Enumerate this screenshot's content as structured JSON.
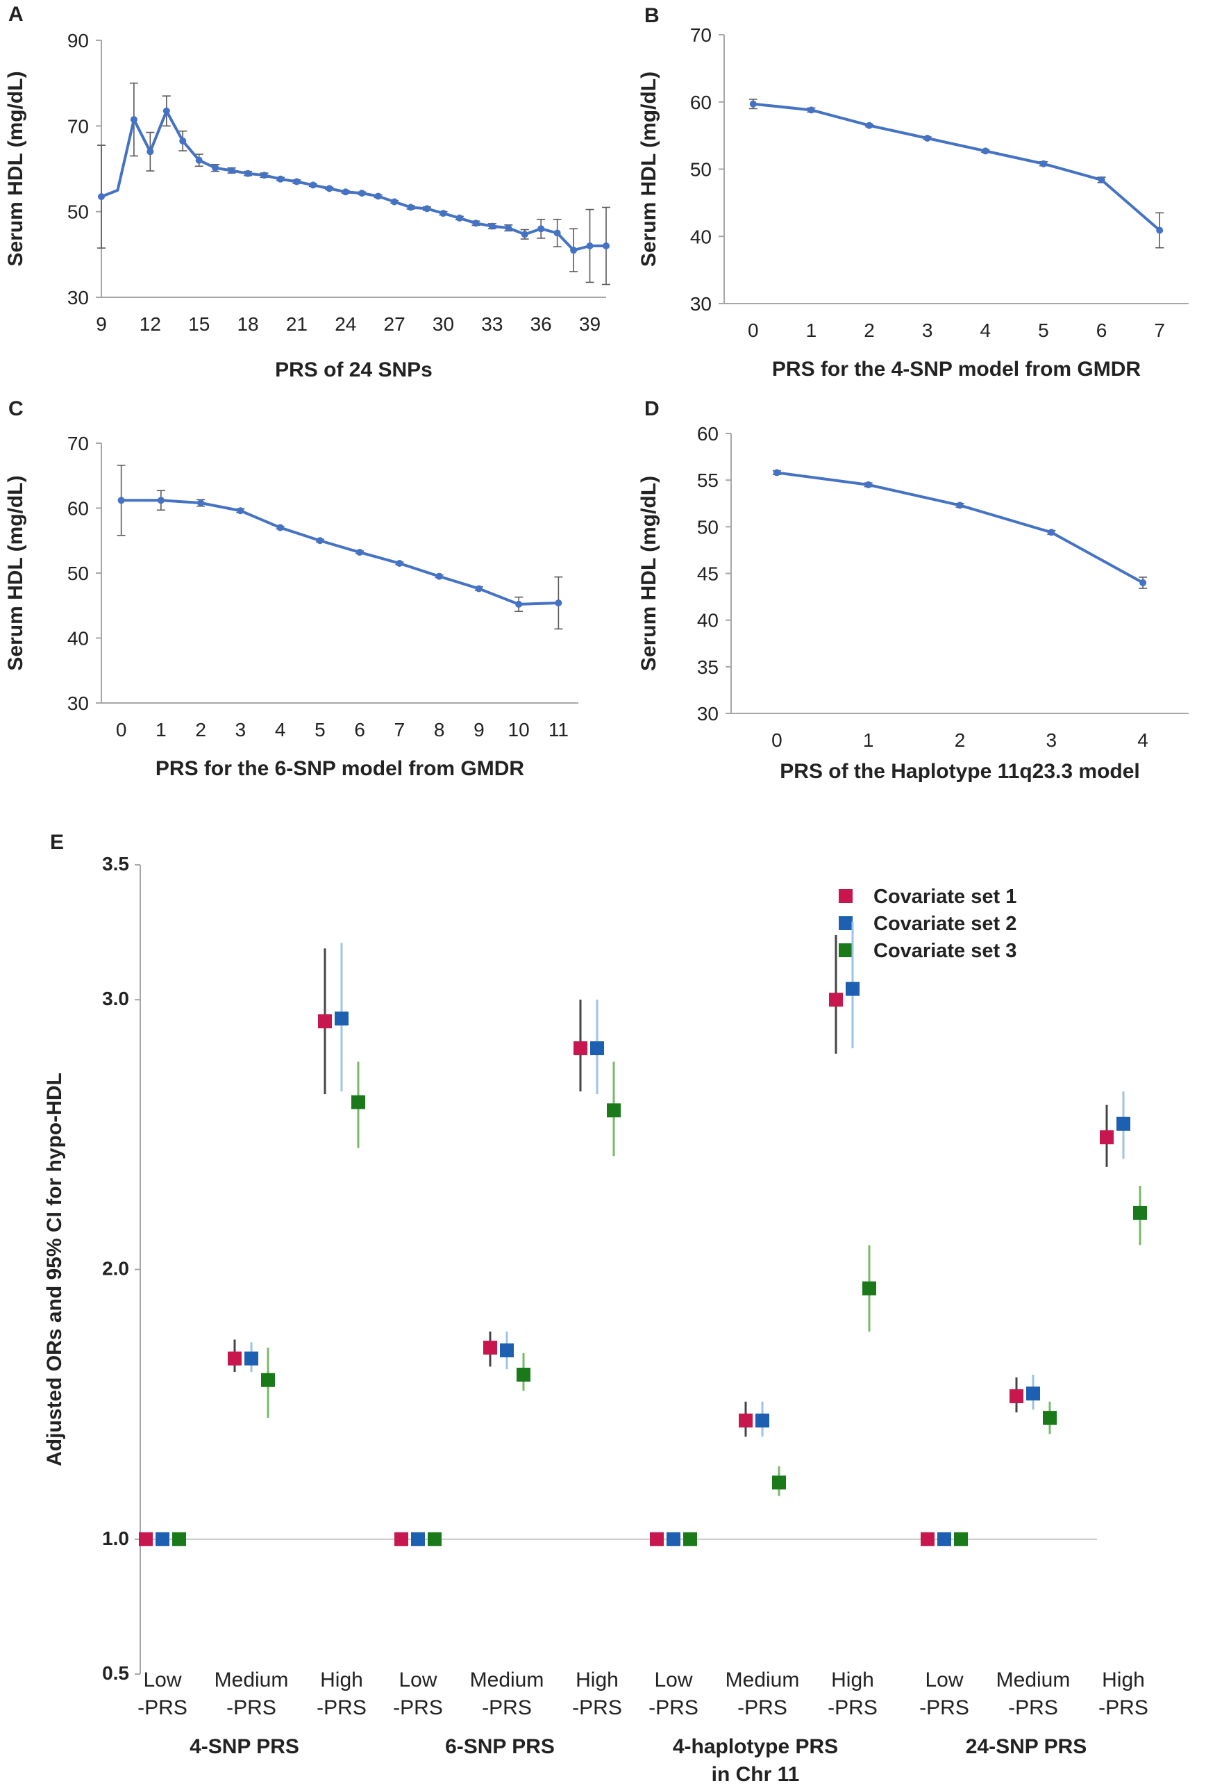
{
  "colors": {
    "line": "#4472c4",
    "axis": "#a6a6a6",
    "errorbar": "#595959",
    "covariate1": "#c8174e",
    "covariate2": "#1d5fb0",
    "covariate3": "#1a7a1a",
    "ci1": "#444444",
    "ci2": "#9ec3e6",
    "ci3": "#7ab86a"
  },
  "chart_data": [
    {
      "id": "A",
      "type": "line",
      "letter": "A",
      "xlabel": "PRS of 24 SNPs",
      "ylabel": "Serum HDL (mg/dL)",
      "xlim": [
        9,
        40
      ],
      "ylim": [
        30,
        90
      ],
      "xticks": [
        9,
        12,
        15,
        18,
        21,
        24,
        27,
        30,
        33,
        36,
        39
      ],
      "yticks": [
        30,
        50,
        70,
        90
      ],
      "x": [
        9,
        10,
        11,
        12,
        13,
        14,
        15,
        16,
        17,
        18,
        19,
        20,
        21,
        22,
        23,
        24,
        25,
        26,
        27,
        28,
        29,
        30,
        31,
        32,
        33,
        34,
        35,
        36,
        37,
        38,
        39,
        40
      ],
      "y": [
        53.5,
        55,
        71.5,
        64,
        73.5,
        66.5,
        62,
        60.2,
        59.6,
        58.9,
        58.5,
        57.6,
        57,
        56.2,
        55.4,
        54.6,
        54.3,
        53.6,
        52.3,
        51,
        50.7,
        49.6,
        48.5,
        47.3,
        46.6,
        46.2,
        44.7,
        46,
        45,
        41,
        42,
        42
      ],
      "err": [
        12,
        0,
        8.5,
        4.5,
        3.5,
        2.3,
        1.4,
        0.8,
        0.6,
        0.5,
        0.5,
        0.4,
        0.4,
        0.3,
        0.3,
        0.3,
        0.3,
        0.3,
        0.3,
        0.4,
        0.4,
        0.4,
        0.4,
        0.5,
        0.6,
        0.7,
        1.1,
        2.2,
        3.2,
        5,
        8.5,
        9
      ],
      "show_marker": [
        true,
        false,
        true,
        true,
        true,
        true,
        true,
        true,
        true,
        true,
        true,
        true,
        true,
        true,
        true,
        true,
        true,
        true,
        true,
        true,
        true,
        true,
        true,
        true,
        true,
        true,
        true,
        true,
        true,
        true,
        true,
        true
      ]
    },
    {
      "id": "B",
      "type": "line",
      "letter": "B",
      "xlabel": "PRS for the 4-SNP model from GMDR",
      "ylabel": "Serum HDL (mg/dL)",
      "xlim": [
        -0.5,
        7.5
      ],
      "ylim": [
        30,
        70
      ],
      "xticks": [
        0,
        1,
        2,
        3,
        4,
        5,
        6,
        7
      ],
      "yticks": [
        30,
        40,
        50,
        60,
        70
      ],
      "x": [
        0,
        1,
        2,
        3,
        4,
        5,
        6,
        7
      ],
      "y": [
        59.7,
        58.8,
        56.5,
        54.6,
        52.7,
        50.8,
        48.4,
        40.9
      ],
      "err": [
        0.7,
        0.3,
        0.2,
        0.2,
        0.2,
        0.3,
        0.4,
        2.6
      ]
    },
    {
      "id": "C",
      "type": "line",
      "letter": "C",
      "xlabel": "PRS for the 6-SNP model from GMDR",
      "ylabel": "Serum HDL (mg/dL)",
      "xlim": [
        -0.5,
        11.5
      ],
      "ylim": [
        30,
        70
      ],
      "xticks": [
        0,
        1,
        2,
        3,
        4,
        5,
        6,
        7,
        8,
        9,
        10,
        11
      ],
      "yticks": [
        30,
        40,
        50,
        60,
        70
      ],
      "x": [
        0,
        1,
        2,
        3,
        4,
        5,
        6,
        7,
        8,
        9,
        10,
        11
      ],
      "y": [
        61.2,
        61.2,
        60.8,
        59.6,
        57.0,
        55.0,
        53.2,
        51.5,
        49.5,
        47.6,
        45.2,
        45.4
      ],
      "err": [
        5.4,
        1.5,
        0.5,
        0.3,
        0.2,
        0.2,
        0.2,
        0.2,
        0.2,
        0.3,
        1.1,
        4.0
      ]
    },
    {
      "id": "D",
      "type": "line",
      "letter": "D",
      "xlabel": "PRS of the Haplotype 11q23.3 model",
      "ylabel": "Serum HDL (mg/dL)",
      "xlim": [
        -0.5,
        4.5
      ],
      "ylim": [
        30,
        60
      ],
      "xticks": [
        0,
        1,
        2,
        3,
        4
      ],
      "yticks": [
        30,
        35,
        40,
        45,
        50,
        55,
        60
      ],
      "x": [
        0,
        1,
        2,
        3,
        4
      ],
      "y": [
        55.8,
        54.5,
        52.3,
        49.4,
        44.0
      ],
      "err": [
        0.2,
        0.2,
        0.2,
        0.2,
        0.6
      ]
    },
    {
      "id": "E",
      "type": "scatter",
      "letter": "E",
      "ylabel": "Adjusted  ORs and 95% CI for hypo-HDL",
      "yticks": [
        "0.5",
        "1.0",
        "2.0",
        "3.0",
        "3.5"
      ],
      "ytick_values": [
        0.5,
        1.0,
        2.0,
        3.0,
        3.5
      ],
      "ylim": [
        0.5,
        3.5
      ],
      "reference_line": 1.0,
      "legend": [
        "Covariate set 1",
        "Covariate set 2",
        "Covariate set 3"
      ],
      "legend_position": "top-right",
      "category_labels": [
        [
          "Low",
          "-PRS"
        ],
        [
          "Medium",
          "-PRS"
        ],
        [
          "High",
          "-PRS"
        ]
      ],
      "groups": [
        {
          "title": [
            "4-SNP  PRS"
          ],
          "points": [
            [
              [
                1.0,
                null,
                null
              ],
              [
                1.0,
                null,
                null
              ],
              [
                1.0,
                null,
                null
              ]
            ],
            [
              [
                1.67,
                1.62,
                1.74
              ],
              [
                1.67,
                1.62,
                1.73
              ],
              [
                1.59,
                1.45,
                1.71
              ]
            ],
            [
              [
                2.92,
                2.65,
                3.19
              ],
              [
                2.93,
                2.66,
                3.21
              ],
              [
                2.62,
                2.45,
                2.77
              ]
            ]
          ]
        },
        {
          "title": [
            "6-SNP  PRS"
          ],
          "points": [
            [
              [
                1.0,
                null,
                null
              ],
              [
                1.0,
                null,
                null
              ],
              [
                1.0,
                null,
                null
              ]
            ],
            [
              [
                1.71,
                1.64,
                1.77
              ],
              [
                1.7,
                1.63,
                1.77
              ],
              [
                1.61,
                1.55,
                1.69
              ]
            ],
            [
              [
                2.82,
                2.66,
                3.0
              ],
              [
                2.82,
                2.65,
                3.0
              ],
              [
                2.59,
                2.42,
                2.77
              ]
            ]
          ]
        },
        {
          "title": [
            "4-haplotype  PRS",
            "in Chr 11"
          ],
          "points": [
            [
              [
                1.0,
                null,
                null
              ],
              [
                1.0,
                null,
                null
              ],
              [
                1.0,
                null,
                null
              ]
            ],
            [
              [
                1.44,
                1.38,
                1.51
              ],
              [
                1.44,
                1.38,
                1.51
              ],
              [
                1.21,
                1.16,
                1.27
              ]
            ],
            [
              [
                3.0,
                2.8,
                3.24
              ],
              [
                3.04,
                2.82,
                3.29
              ],
              [
                1.93,
                1.77,
                2.09
              ]
            ]
          ]
        },
        {
          "title": [
            "24-SNP  PRS"
          ],
          "points": [
            [
              [
                1.0,
                null,
                null
              ],
              [
                1.0,
                null,
                null
              ],
              [
                1.0,
                null,
                null
              ]
            ],
            [
              [
                1.53,
                1.47,
                1.6
              ],
              [
                1.54,
                1.48,
                1.61
              ],
              [
                1.45,
                1.39,
                1.51
              ]
            ],
            [
              [
                2.49,
                2.38,
                2.61
              ],
              [
                2.54,
                2.41,
                2.66
              ],
              [
                2.21,
                2.09,
                2.31
              ]
            ]
          ]
        }
      ]
    }
  ]
}
